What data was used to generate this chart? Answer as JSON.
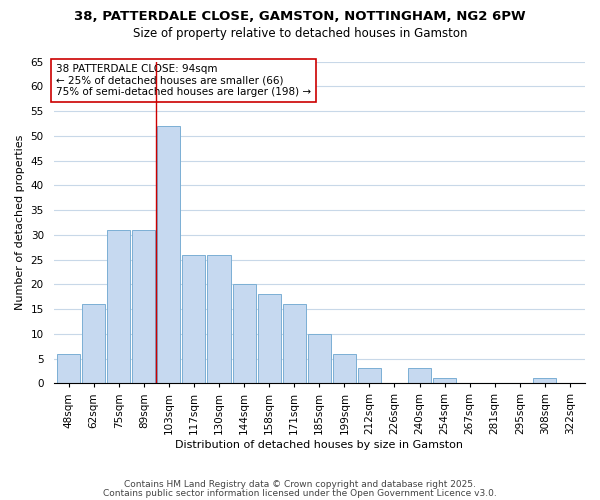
{
  "title": "38, PATTERDALE CLOSE, GAMSTON, NOTTINGHAM, NG2 6PW",
  "subtitle": "Size of property relative to detached houses in Gamston",
  "xlabel": "Distribution of detached houses by size in Gamston",
  "ylabel": "Number of detached properties",
  "bar_labels": [
    "48sqm",
    "62sqm",
    "75sqm",
    "89sqm",
    "103sqm",
    "117sqm",
    "130sqm",
    "144sqm",
    "158sqm",
    "171sqm",
    "185sqm",
    "199sqm",
    "212sqm",
    "226sqm",
    "240sqm",
    "254sqm",
    "267sqm",
    "281sqm",
    "295sqm",
    "308sqm",
    "322sqm"
  ],
  "bar_values": [
    6,
    16,
    31,
    31,
    52,
    26,
    26,
    20,
    18,
    16,
    10,
    6,
    3,
    0,
    3,
    1,
    0,
    0,
    0,
    1,
    0
  ],
  "bar_color": "#c6d9f0",
  "bar_edge_color": "#7bafd4",
  "ylim": [
    0,
    65
  ],
  "yticks": [
    0,
    5,
    10,
    15,
    20,
    25,
    30,
    35,
    40,
    45,
    50,
    55,
    60,
    65
  ],
  "vline_x_index": 3.5,
  "vline_color": "#cc0000",
  "annotation_box_text": "38 PATTERDALE CLOSE: 94sqm\n← 25% of detached houses are smaller (66)\n75% of semi-detached houses are larger (198) →",
  "footer1": "Contains HM Land Registry data © Crown copyright and database right 2025.",
  "footer2": "Contains public sector information licensed under the Open Government Licence v3.0.",
  "background_color": "#ffffff",
  "grid_color": "#c8d8e8",
  "title_fontsize": 9.5,
  "subtitle_fontsize": 8.5,
  "axis_label_fontsize": 8.0,
  "tick_fontsize": 7.5,
  "annot_fontsize": 7.5,
  "footer_fontsize": 6.5
}
